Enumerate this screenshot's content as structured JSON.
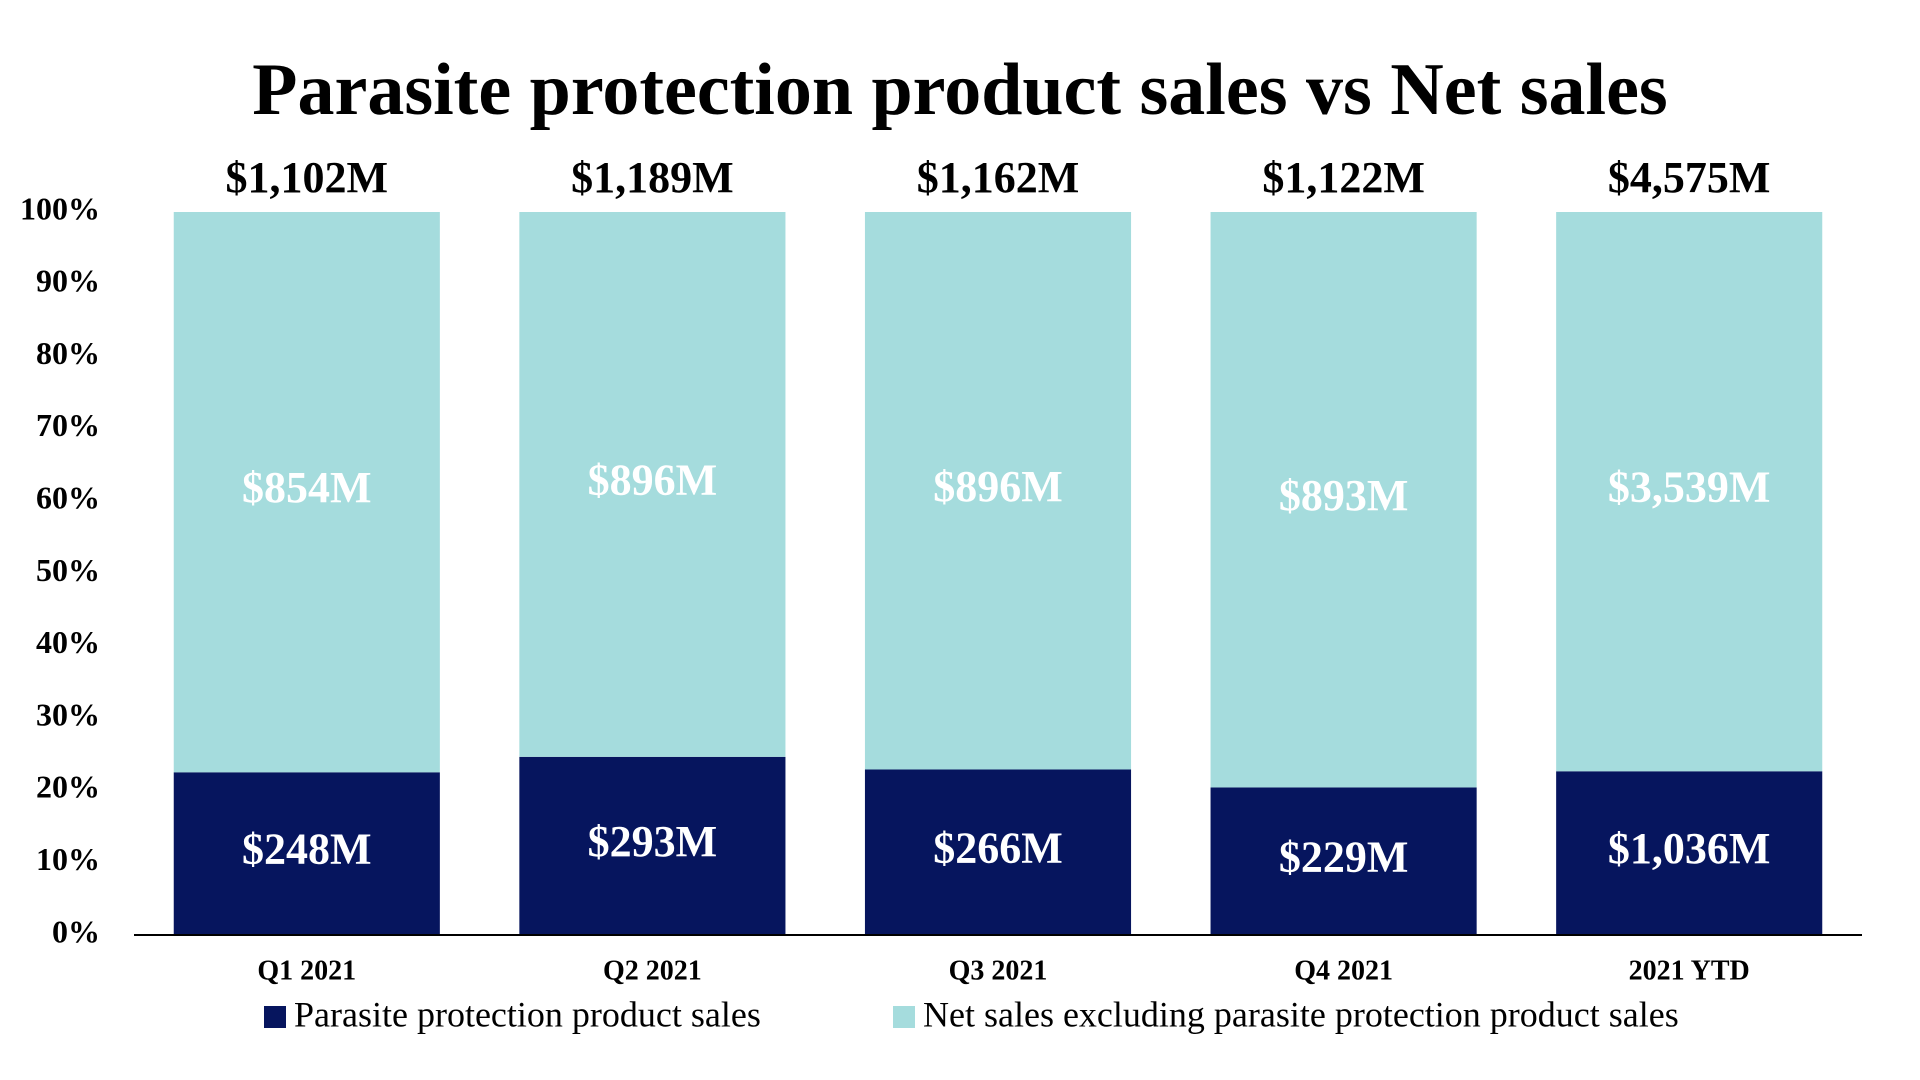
{
  "chart_data": {
    "type": "bar",
    "stacking": "percent",
    "title": "Parasite protection product sales vs Net sales",
    "categories": [
      "Q1 2021",
      "Q2 2021",
      "Q3 2021",
      "Q4 2021",
      "2021 YTD"
    ],
    "series": [
      {
        "name": "Parasite protection product sales",
        "color": "#06155e",
        "values": [
          248,
          293,
          266,
          229,
          1036
        ],
        "value_labels": [
          "$248M",
          "$293M",
          "$266M",
          "$229M",
          "$1,036M"
        ]
      },
      {
        "name": "Net sales excluding parasite protection product sales",
        "color": "#a5dcdd",
        "values": [
          854,
          896,
          896,
          893,
          3539
        ],
        "value_labels": [
          "$854M",
          "$896M",
          "$896M",
          "$893M",
          "$3,539M"
        ]
      }
    ],
    "totals": [
      1102,
      1189,
      1162,
      1122,
      4575
    ],
    "total_labels": [
      "$1,102M",
      "$1,189M",
      "$1,162M",
      "$1,122M",
      "$4,575M"
    ],
    "ylim": [
      0,
      100
    ],
    "yticks": [
      {
        "value": 0,
        "label": "0%"
      },
      {
        "value": 10,
        "label": "10%"
      },
      {
        "value": 20,
        "label": "20%"
      },
      {
        "value": 30,
        "label": "30%"
      },
      {
        "value": 40,
        "label": "40%"
      },
      {
        "value": 50,
        "label": "50%"
      },
      {
        "value": 60,
        "label": "60%"
      },
      {
        "value": 70,
        "label": "70%"
      },
      {
        "value": 80,
        "label": "80%"
      },
      {
        "value": 90,
        "label": "90%"
      },
      {
        "value": 100,
        "label": "100%"
      }
    ],
    "grid": false,
    "legend": "bottom"
  }
}
